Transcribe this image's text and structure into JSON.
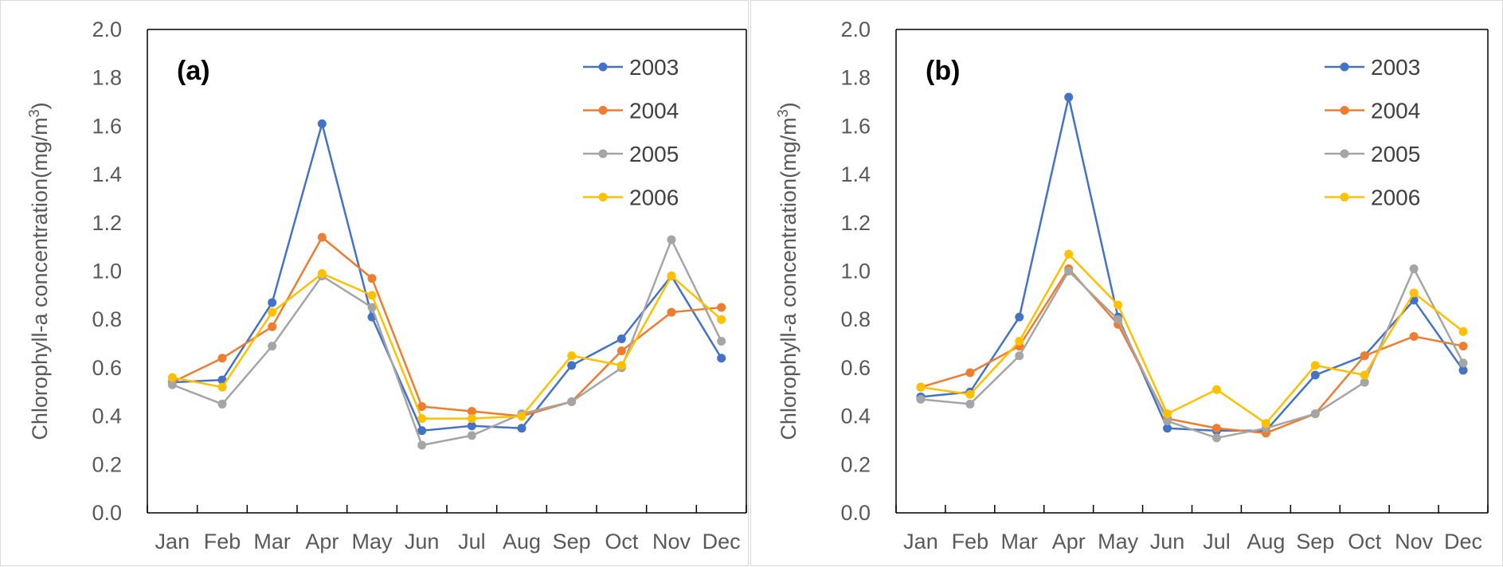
{
  "chart_data": [
    {
      "type": "line",
      "panel_label": "(a)",
      "categories": [
        "Jan",
        "Feb",
        "Mar",
        "Apr",
        "May",
        "Jun",
        "Jul",
        "Aug",
        "Sep",
        "Oct",
        "Nov",
        "Dec"
      ],
      "ylabel": "Chlorophyll-a concentration(mg/m3)",
      "ylim": [
        0,
        2.0
      ],
      "yticks": [
        "0.0",
        "0.2",
        "0.4",
        "0.6",
        "0.8",
        "1.0",
        "1.2",
        "1.4",
        "1.6",
        "1.8",
        "2.0"
      ],
      "legend_position": "top-right",
      "grid": false,
      "series": [
        {
          "name": "2003",
          "color": "#4472C4",
          "values": [
            0.54,
            0.55,
            0.87,
            1.61,
            0.81,
            0.34,
            0.36,
            0.35,
            0.61,
            0.72,
            0.98,
            0.64
          ]
        },
        {
          "name": "2004",
          "color": "#ED7D31",
          "values": [
            0.54,
            0.64,
            0.77,
            1.14,
            0.97,
            0.44,
            0.42,
            0.4,
            0.46,
            0.67,
            0.83,
            0.85
          ]
        },
        {
          "name": "2005",
          "color": "#A5A5A5",
          "values": [
            0.53,
            0.45,
            0.69,
            0.98,
            0.85,
            0.28,
            0.32,
            0.41,
            0.46,
            0.6,
            1.13,
            0.71
          ]
        },
        {
          "name": "2006",
          "color": "#FFC000",
          "values": [
            0.56,
            0.52,
            0.83,
            0.99,
            0.9,
            0.39,
            0.39,
            0.4,
            0.65,
            0.61,
            0.98,
            0.8
          ]
        }
      ]
    },
    {
      "type": "line",
      "panel_label": "(b)",
      "categories": [
        "Jan",
        "Feb",
        "Mar",
        "Apr",
        "May",
        "Jun",
        "Jul",
        "Aug",
        "Sep",
        "Oct",
        "Nov",
        "Dec"
      ],
      "ylabel": "Chlorophyll-a concentration(mg/m3)",
      "ylim": [
        0,
        2.0
      ],
      "yticks": [
        "0.0",
        "0.2",
        "0.4",
        "0.6",
        "0.8",
        "1.0",
        "1.2",
        "1.4",
        "1.6",
        "1.8",
        "2.0"
      ],
      "legend_position": "top-right",
      "grid": false,
      "series": [
        {
          "name": "2003",
          "color": "#4472C4",
          "values": [
            0.48,
            0.5,
            0.81,
            1.72,
            0.81,
            0.35,
            0.34,
            0.34,
            0.57,
            0.65,
            0.88,
            0.59
          ]
        },
        {
          "name": "2004",
          "color": "#ED7D31",
          "values": [
            0.52,
            0.58,
            0.69,
            1.01,
            0.78,
            0.39,
            0.35,
            0.33,
            0.41,
            0.65,
            0.73,
            0.69
          ]
        },
        {
          "name": "2005",
          "color": "#A5A5A5",
          "values": [
            0.47,
            0.45,
            0.65,
            1.0,
            0.8,
            0.38,
            0.31,
            0.35,
            0.41,
            0.54,
            1.01,
            0.62
          ]
        },
        {
          "name": "2006",
          "color": "#FFC000",
          "values": [
            0.52,
            0.49,
            0.71,
            1.07,
            0.86,
            0.41,
            0.51,
            0.37,
            0.61,
            0.57,
            0.91,
            0.75
          ]
        }
      ]
    }
  ]
}
